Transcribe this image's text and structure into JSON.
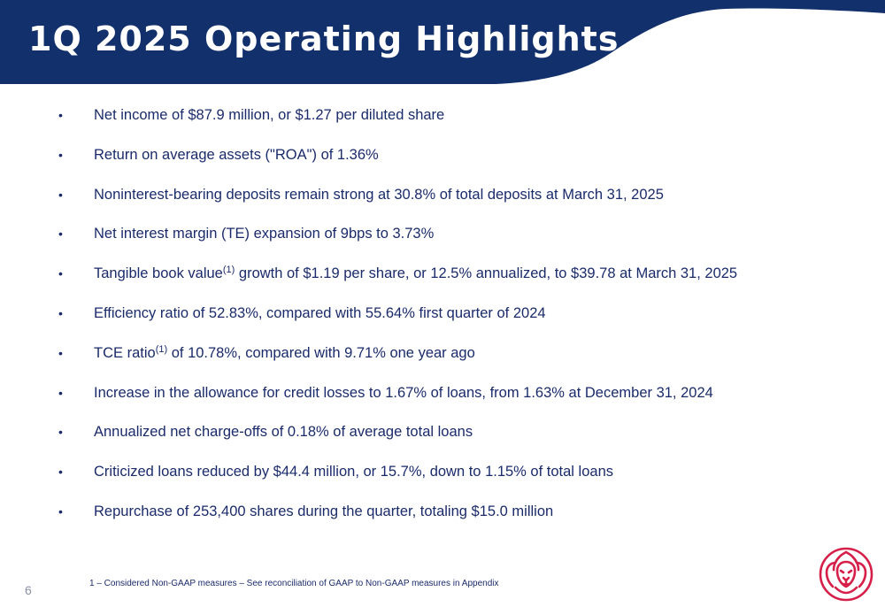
{
  "slide": {
    "title": "1Q 2025 Operating Highlights",
    "page_number": "6"
  },
  "bullets": [
    {
      "text": "Net income of $87.9 million, or $1.27 per diluted share"
    },
    {
      "text": "Return on average assets (\"ROA\") of 1.36%"
    },
    {
      "text": "Noninterest-bearing deposits remain strong at 30.8% of total deposits at March 31, 2025"
    },
    {
      "text": "Net interest margin (TE) expansion of 9bps to 3.73%"
    },
    {
      "pre": "Tangible book value",
      "sup": "(1)",
      "post": " growth of $1.19 per share, or 12.5% annualized, to $39.78 at March 31, 2025"
    },
    {
      "text": "Efficiency ratio of 52.83%, compared with 55.64% first quarter of 2024"
    },
    {
      "pre": "TCE ratio",
      "sup": "(1)",
      "post": " of 10.78%, compared with 9.71% one year ago"
    },
    {
      "text": "Increase in the allowance for credit losses to 1.67% of loans, from 1.63% at December 31, 2024"
    },
    {
      "text": "Annualized net charge-offs of 0.18% of average total loans"
    },
    {
      "text": "Criticized loans reduced by $44.4 million, or 15.7%, down to 1.15% of total loans"
    },
    {
      "text": "Repurchase of 253,400 shares during the quarter, totaling $15.0 million"
    }
  ],
  "bullet_symbol": "•",
  "footnote": "1 – Considered Non-GAAP measures – See reconciliation of GAAP to Non-GAAP measures in Appendix",
  "colors": {
    "header_navy": "#12306b",
    "text_navy": "#1a2b6b",
    "logo_red": "#d6204a"
  },
  "logo": {
    "icon": "lion-head-icon"
  }
}
